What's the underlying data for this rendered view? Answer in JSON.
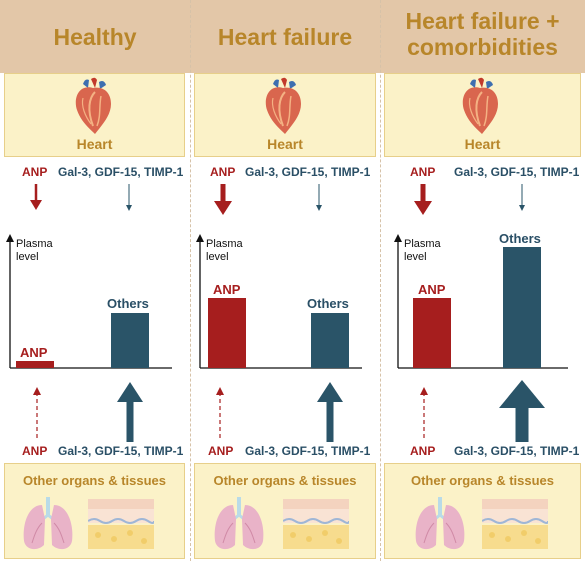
{
  "columns": [
    {
      "title": "Healthy",
      "heart_label": "Heart",
      "top_anp": "ANP",
      "top_markers": "Gal-3, GDF-15, TIMP-1",
      "axis_label_line1": "Plasma",
      "axis_label_line2": "level",
      "bar_anp_label": "ANP",
      "bar_others_label": "Others",
      "bottom_anp": "ANP",
      "bottom_markers": "Gal-3, GDF-15, TIMP-1",
      "organs_label": "Other organs & tissues"
    },
    {
      "title": "Heart failure",
      "heart_label": "Heart",
      "top_anp": "ANP",
      "top_markers": "Gal-3, GDF-15, TIMP-1",
      "axis_label_line1": "Plasma",
      "axis_label_line2": "level",
      "bar_anp_label": "ANP",
      "bar_others_label": "Others",
      "bottom_anp": "ANP",
      "bottom_markers": "Gal-3, GDF-15, TIMP-1",
      "organs_label": "Other organs & tissues"
    },
    {
      "title_line1": "Heart failure +",
      "title_line2": "comorbidities",
      "heart_label": "Heart",
      "top_anp": "ANP",
      "top_markers": "Gal-3, GDF-15, TIMP-1",
      "axis_label_line1": "Plasma",
      "axis_label_line2": "level",
      "bar_anp_label": "ANP",
      "bar_others_label": "Others",
      "bottom_anp": "ANP",
      "bottom_markers": "Gal-3, GDF-15, TIMP-1",
      "organs_label": "Other organs & tissues"
    }
  ],
  "colors": {
    "header_band": "#e3c7a8",
    "title_gold": "#b8862a",
    "anp_red": "#a61e1e",
    "others_blue": "#2a5468",
    "box_fill": "#fbf2c8"
  },
  "icons": [
    "heart-icon",
    "lungs-icon",
    "skin-tissue-icon",
    "arrow-down-icon",
    "arrow-up-icon"
  ]
}
